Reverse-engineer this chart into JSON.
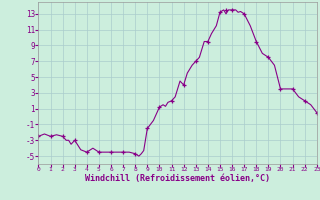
{
  "x": [
    0,
    0.5,
    1,
    1.5,
    2,
    2.3,
    2.5,
    2.7,
    3,
    3.5,
    4,
    4.5,
    5,
    5.5,
    6,
    6.5,
    7,
    7.5,
    8,
    8.3,
    8.5,
    8.7,
    9,
    9.5,
    10,
    10.3,
    10.5,
    10.7,
    11,
    11.3,
    11.5,
    11.7,
    12,
    12.3,
    12.5,
    12.7,
    13,
    13.3,
    13.5,
    13.7,
    14,
    14.3,
    14.5,
    14.7,
    15,
    15.3,
    15.5,
    15.7,
    16,
    16.3,
    16.5,
    16.7,
    17,
    17.5,
    18,
    18.5,
    19,
    19.5,
    20,
    20.5,
    21,
    21.5,
    22,
    22.5,
    23
  ],
  "y": [
    -2.5,
    -2.2,
    -2.5,
    -2.3,
    -2.5,
    -3.0,
    -3.0,
    -3.5,
    -3.0,
    -4.2,
    -4.5,
    -4.0,
    -4.5,
    -4.5,
    -4.5,
    -4.5,
    -4.5,
    -4.5,
    -4.7,
    -5.0,
    -4.7,
    -4.3,
    -1.5,
    -0.5,
    1.2,
    1.5,
    1.3,
    1.8,
    2.0,
    2.5,
    3.5,
    4.5,
    4.0,
    5.5,
    6.0,
    6.5,
    7.0,
    7.5,
    8.5,
    9.5,
    9.5,
    10.5,
    11.0,
    11.5,
    13.2,
    13.5,
    13.0,
    13.5,
    13.5,
    13.5,
    13.2,
    13.3,
    13.0,
    11.5,
    9.5,
    8.0,
    7.5,
    6.5,
    3.5,
    3.5,
    3.5,
    2.5,
    2.0,
    1.5,
    0.5
  ],
  "markers_x": [
    0,
    1,
    2,
    3,
    4,
    5,
    6,
    7,
    8,
    9,
    10,
    11,
    12,
    13,
    14,
    15,
    15.5,
    16,
    17,
    18,
    19,
    20,
    21,
    22,
    23
  ],
  "markers_y": [
    -2.5,
    -2.5,
    -2.5,
    -3.0,
    -4.5,
    -4.5,
    -4.5,
    -4.5,
    -4.7,
    -1.5,
    1.2,
    2.0,
    4.0,
    7.0,
    9.5,
    13.2,
    13.5,
    13.5,
    13.0,
    9.5,
    7.5,
    3.5,
    3.5,
    2.0,
    0.5
  ],
  "line_color": "#880088",
  "bg_color": "#cceedd",
  "grid_color": "#aacccc",
  "axis_label_color": "#880088",
  "xlabel": "Windchill (Refroidissement éolien,°C)",
  "yticks": [
    -5,
    -3,
    -1,
    1,
    3,
    5,
    7,
    9,
    11,
    13
  ],
  "xticks": [
    0,
    1,
    2,
    3,
    4,
    5,
    6,
    7,
    8,
    9,
    10,
    11,
    12,
    13,
    14,
    15,
    16,
    17,
    18,
    19,
    20,
    21,
    22,
    23
  ],
  "ylim": [
    -6,
    14.5
  ],
  "xlim": [
    0,
    23
  ]
}
